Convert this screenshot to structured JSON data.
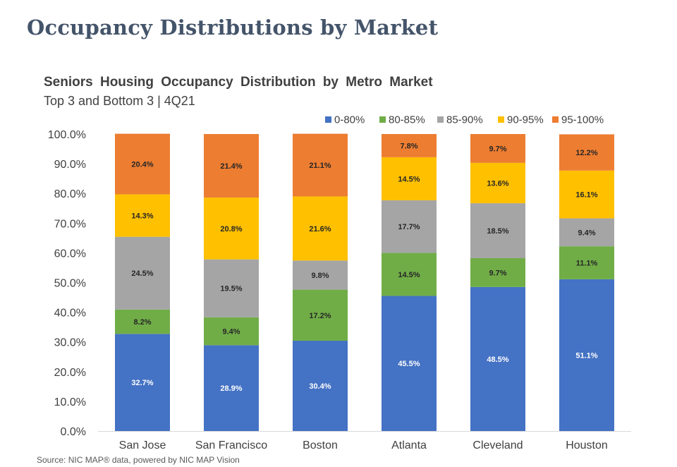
{
  "page": {
    "title": "Occupancy Distributions by Market",
    "source": "Source: NIC MAP® data, powered by NIC MAP Vision"
  },
  "chart_data": {
    "type": "bar",
    "stacked": true,
    "title": "Seniors Housing Occupancy Distribution by Metro Market",
    "subtitle": "Top 3 and Bottom 3 | 4Q21",
    "xlabel": "",
    "ylabel": "",
    "ylim": [
      0,
      100
    ],
    "yticks": [
      "0.0%",
      "10.0%",
      "20.0%",
      "30.0%",
      "40.0%",
      "50.0%",
      "60.0%",
      "70.0%",
      "80.0%",
      "90.0%",
      "100.0%"
    ],
    "grid": false,
    "legend_position": "top-right",
    "categories": [
      "San Jose",
      "San Francisco",
      "Boston",
      "Atlanta",
      "Cleveland",
      "Houston"
    ],
    "series": [
      {
        "name": "0-80%",
        "color": "#4472c4",
        "values": [
          32.7,
          28.9,
          30.4,
          45.5,
          48.5,
          51.1
        ],
        "labels": [
          "32.7%",
          "28.9%",
          "30.4%",
          "45.5%",
          "48.5%",
          "51.1%"
        ],
        "label_color": "#ffffff"
      },
      {
        "name": "80-85%",
        "color": "#70ad47",
        "values": [
          8.2,
          9.4,
          17.2,
          14.5,
          9.7,
          11.1
        ],
        "labels": [
          "8.2%",
          "9.4%",
          "17.2%",
          "14.5%",
          "9.7%",
          "11.1%"
        ],
        "label_color": "#262626"
      },
      {
        "name": "85-90%",
        "color": "#a5a5a5",
        "values": [
          24.5,
          19.5,
          9.8,
          17.7,
          18.5,
          9.4
        ],
        "labels": [
          "24.5%",
          "19.5%",
          "9.8%",
          "17.7%",
          "18.5%",
          "9.4%"
        ],
        "label_color": "#262626"
      },
      {
        "name": "90-95%",
        "color": "#ffc000",
        "values": [
          14.3,
          20.8,
          21.6,
          14.5,
          13.6,
          16.1
        ],
        "labels": [
          "14.3%",
          "20.8%",
          "21.6%",
          "14.5%",
          "13.6%",
          "16.1%"
        ],
        "label_color": "#262626"
      },
      {
        "name": "95-100%",
        "color": "#ed7d31",
        "values": [
          20.4,
          21.4,
          21.1,
          7.8,
          9.7,
          12.2
        ],
        "labels": [
          "20.4%",
          "21.4%",
          "21.1%",
          "7.8%",
          "9.7%",
          "12.2%"
        ],
        "label_color": "#262626"
      }
    ]
  }
}
